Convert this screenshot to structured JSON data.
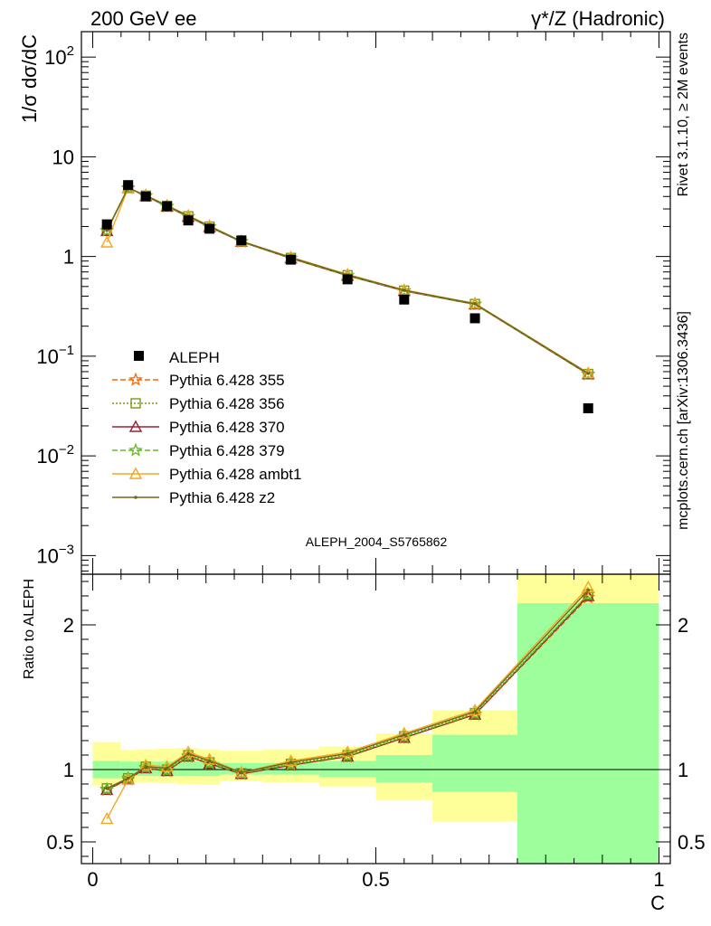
{
  "chart_data": {
    "type": "scatter",
    "header": {
      "left": "200 GeV ee",
      "right": "γ*/Z (Hadronic)",
      "side_top": "Rivet 3.1.10, ≥ 2M events",
      "side_bottom": "mcplots.cern.ch [arXiv:1306.3436]",
      "analysis_id": "ALEPH_2004_S5765862"
    },
    "top_panel": {
      "ylabel": "1/σ  dσ/dC",
      "yscale": "log",
      "ylim": [
        0.00065,
        180
      ],
      "y_ticks": [
        {
          "value": 0.001,
          "base": "10",
          "exp": "−3"
        },
        {
          "value": 0.01,
          "base": "10",
          "exp": "−2"
        },
        {
          "value": 0.1,
          "base": "10",
          "exp": "−1"
        },
        {
          "value": 1,
          "base": "1",
          "exp": ""
        },
        {
          "value": 10,
          "base": "10",
          "exp": ""
        },
        {
          "value": 100,
          "base": "10",
          "exp": "2"
        }
      ]
    },
    "ratio_panel": {
      "ylabel": "Ratio to ALEPH",
      "ylim": [
        0.35,
        2.35
      ],
      "y_ticks": [
        {
          "value": 0.5,
          "label": "0.5"
        },
        {
          "value": 1,
          "label": "1"
        },
        {
          "value": 2,
          "label": "2"
        }
      ],
      "bands": [
        {
          "x0": 0.0,
          "x1": 0.05,
          "g": [
            0.94,
            1.06
          ],
          "y": [
            0.89,
            1.19
          ]
        },
        {
          "x0": 0.05,
          "x1": 0.075,
          "g": [
            0.955,
            1.055
          ],
          "y": [
            0.915,
            1.135
          ]
        },
        {
          "x0": 0.075,
          "x1": 0.1125,
          "g": [
            0.955,
            1.055
          ],
          "y": [
            0.91,
            1.14
          ]
        },
        {
          "x0": 0.1125,
          "x1": 0.15,
          "g": [
            0.955,
            1.055
          ],
          "y": [
            0.905,
            1.145
          ]
        },
        {
          "x0": 0.15,
          "x1": 0.1875,
          "g": [
            0.955,
            1.055
          ],
          "y": [
            0.9,
            1.15
          ]
        },
        {
          "x0": 0.1875,
          "x1": 0.225,
          "g": [
            0.955,
            1.055
          ],
          "y": [
            0.895,
            1.14
          ]
        },
        {
          "x0": 0.225,
          "x1": 0.3,
          "g": [
            0.965,
            1.045
          ],
          "y": [
            0.92,
            1.13
          ]
        },
        {
          "x0": 0.3,
          "x1": 0.4,
          "g": [
            0.965,
            1.045
          ],
          "y": [
            0.91,
            1.14
          ]
        },
        {
          "x0": 0.4,
          "x1": 0.5,
          "g": [
            0.95,
            1.06
          ],
          "y": [
            0.88,
            1.16
          ]
        },
        {
          "x0": 0.5,
          "x1": 0.6,
          "g": [
            0.91,
            1.1
          ],
          "y": [
            0.79,
            1.25
          ]
        },
        {
          "x0": 0.6,
          "x1": 0.75,
          "g": [
            0.845,
            1.24
          ],
          "y": [
            0.64,
            1.41
          ]
        },
        {
          "x0": 0.75,
          "x1": 1.0,
          "g": [
            0.35,
            2.15
          ],
          "y": [
            0.35,
            2.35
          ]
        }
      ]
    },
    "x": {
      "label": "C",
      "lim": [
        -0.02,
        1.02
      ],
      "ticks": [
        {
          "value": 0,
          "label": "0"
        },
        {
          "value": 0.5,
          "label": "0.5"
        },
        {
          "value": 1,
          "label": "1"
        }
      ]
    },
    "data_points": {
      "name": "ALEPH",
      "x": [
        0.025,
        0.0625,
        0.09375,
        0.13125,
        0.16875,
        0.20625,
        0.2625,
        0.35,
        0.45,
        0.55,
        0.675,
        0.875
      ],
      "y": [
        2.1,
        5.2,
        4.0,
        3.2,
        2.3,
        1.9,
        1.45,
        0.93,
        0.59,
        0.37,
        0.24,
        0.03
      ]
    },
    "mc_x": [
      0.025,
      0.0625,
      0.09375,
      0.13125,
      0.16875,
      0.20625,
      0.2625,
      0.35,
      0.45,
      0.55,
      0.675,
      0.875
    ],
    "series": [
      {
        "name": "Pythia 6.428 355",
        "color": "#ff6600",
        "dash": "6,3",
        "marker": "star",
        "ratio": [
          0.86,
          0.93,
          1.01,
          0.99,
          1.09,
          1.04,
          0.97,
          1.03,
          1.09,
          1.22,
          1.38,
          2.19
        ]
      },
      {
        "name": "Pythia 6.428 356",
        "color": "#7a9a10",
        "dash": "2,2",
        "marker": "square",
        "ratio": [
          0.87,
          0.94,
          1.02,
          1.0,
          1.1,
          1.05,
          0.975,
          1.04,
          1.1,
          1.23,
          1.39,
          2.21
        ]
      },
      {
        "name": "Pythia 6.428 370",
        "color": "#a01e32",
        "dash": "",
        "marker": "triangle",
        "ratio": [
          0.86,
          0.935,
          1.01,
          0.99,
          1.09,
          1.04,
          0.97,
          1.03,
          1.09,
          1.22,
          1.38,
          2.2
        ]
      },
      {
        "name": "Pythia 6.428 379",
        "color": "#66bb22",
        "dash": "6,3",
        "marker": "star",
        "ratio": [
          0.865,
          0.94,
          1.015,
          0.995,
          1.095,
          1.045,
          0.975,
          1.035,
          1.095,
          1.225,
          1.385,
          2.21
        ]
      },
      {
        "name": "Pythia 6.428 ambt1",
        "color": "#f5a623",
        "dash": "",
        "marker": "triangle",
        "ratio": [
          0.66,
          0.93,
          1.03,
          1.02,
          1.12,
          1.07,
          0.98,
          1.06,
          1.12,
          1.25,
          1.41,
          2.26
        ]
      },
      {
        "name": "Pythia 6.428 z2",
        "color": "#6b6b1a",
        "dash": "",
        "marker": "dot",
        "ratio": [
          0.87,
          0.94,
          1.02,
          1.01,
          1.11,
          1.06,
          0.98,
          1.05,
          1.11,
          1.24,
          1.4,
          2.24
        ]
      }
    ],
    "colors": {
      "band_inner": "#9cff9c",
      "band_outer": "#ffff99"
    }
  }
}
